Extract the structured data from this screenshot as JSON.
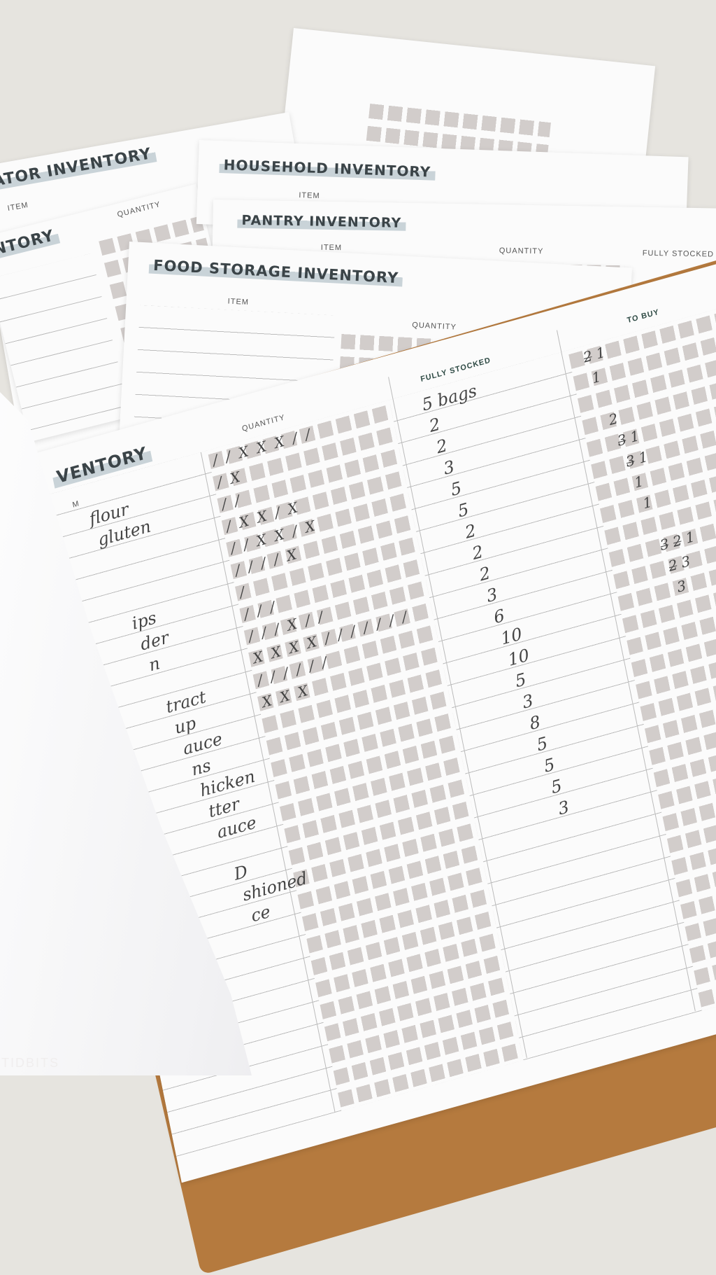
{
  "background_sheets": [
    {
      "title": "ATOR INVENTORY",
      "header": "ITEM"
    },
    {
      "title": "NTORY",
      "header": "QUANTITY"
    },
    {
      "title": "HOUSEHOLD INVENTORY",
      "header": "ITEM"
    },
    {
      "title": "PANTRY INVENTORY",
      "headers": [
        "ITEM",
        "QUANTITY",
        "FULLY STOCKED"
      ]
    },
    {
      "title": "FOOD STORAGE INVENTORY",
      "headers": [
        "ITEM",
        "QUANTITY"
      ]
    }
  ],
  "main_sheet": {
    "title": "VENTORY",
    "headers": {
      "item": "M",
      "quantity": "QUANTITY",
      "fully_stocked": "FULLY STOCKED",
      "to_buy": "TO BUY"
    },
    "items": [
      "flour",
      "gluten",
      "",
      "",
      "",
      "ips",
      "der",
      "n",
      "",
      "tract",
      "up",
      "auce",
      "ns",
      "hicken",
      "tter",
      "auce",
      "",
      "D",
      "shioned",
      "ce"
    ],
    "quantity_marks": [
      "/ / X X X / /",
      "/ X",
      "/ /",
      "/   X X / X",
      "/ / X X / X",
      "/ / / / X",
      "/",
      "/   / /",
      "/ / / X / /",
      "X X X X / / / / / / /",
      "/ / / / / /",
      "X X X"
    ],
    "fully_stocked": [
      "5 bags",
      "2",
      "2",
      "3",
      "5",
      "5",
      "2",
      "2",
      "2",
      "3",
      "6",
      "10",
      "10",
      "5",
      "3",
      "8",
      "5",
      "5",
      "5",
      "3"
    ],
    "to_buy": [
      "2̶ 1",
      "1",
      "",
      "2",
      "3̶ 1",
      "3̶ 1",
      "1",
      "1",
      "",
      "3̶ 2̶ 1",
      "2̶ 3",
      "3"
    ]
  },
  "watermark": "TIDBITS",
  "colors": {
    "surface": "#e6e4df",
    "paper": "#fbfbfb",
    "checkbox": "#d2cdcb",
    "title_band": "#c9d3d8",
    "clipboard": "#b57a3e"
  }
}
